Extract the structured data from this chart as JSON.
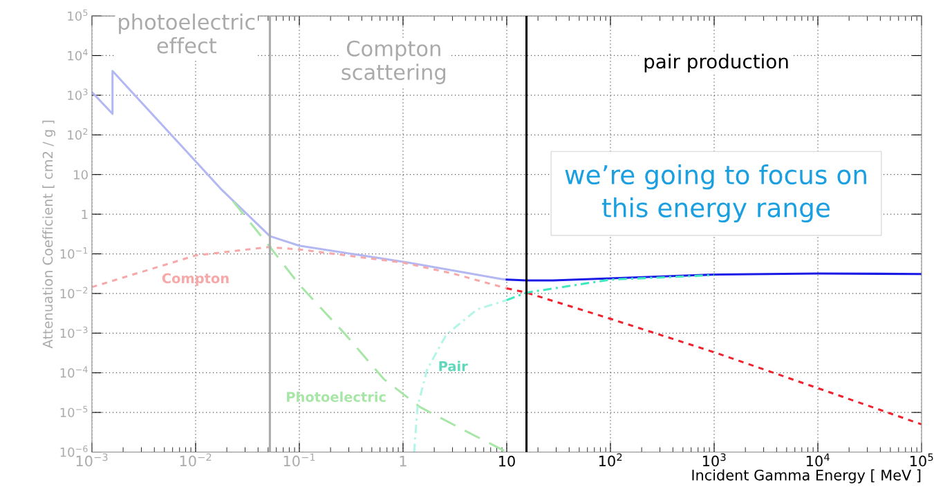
{
  "chart_data": {
    "type": "line",
    "xlabel": "Incident Gamma Energy [ MeV ]",
    "ylabel": "Attenuation Coefficient [ cm2 / g ]",
    "log": "xy",
    "xlim": [
      0.001,
      100000
    ],
    "ylim": [
      1e-06,
      100000
    ],
    "xticks": [
      {
        "value": 0.001,
        "label": "10$^{−3}$"
      },
      {
        "value": 0.01,
        "label": "10$^{−2}$"
      },
      {
        "value": 0.1,
        "label": "10$^{−1}$"
      },
      {
        "value": 1,
        "label": "1"
      },
      {
        "value": 10,
        "label": "10"
      },
      {
        "value": 100,
        "label": "10$^{2}$"
      },
      {
        "value": 1000,
        "label": "10$^{3}$"
      },
      {
        "value": 10000,
        "label": "10$^{4}$"
      },
      {
        "value": 100000,
        "label": "10$^{5}$"
      }
    ],
    "yticks": [
      {
        "value": 1e-06,
        "label": "10$^{−6}$"
      },
      {
        "value": 1e-05,
        "label": "10$^{−5}$"
      },
      {
        "value": 0.0001,
        "label": "10$^{−4}$"
      },
      {
        "value": 0.001,
        "label": "10$^{−3}$"
      },
      {
        "value": 0.01,
        "label": "10$^{−2}$"
      },
      {
        "value": 0.1,
        "label": "10$^{−1}$"
      },
      {
        "value": 1,
        "label": "1"
      },
      {
        "value": 10,
        "label": "10"
      },
      {
        "value": 100,
        "label": "10$^{2}$"
      },
      {
        "value": 1000,
        "label": "10$^{3}$"
      },
      {
        "value": 10000,
        "label": "10$^{4}$"
      },
      {
        "value": 100000,
        "label": "10$^{5}$"
      }
    ],
    "grid": true,
    "legend": false,
    "marker": "none",
    "series": [
      {
        "color": "#b3b8f2",
        "line_style": "solid",
        "x": [
          0.001,
          0.00158,
          0.00158,
          0.0179,
          0.052,
          0.1,
          1.13,
          9.1,
          10
        ],
        "values": [
          1200,
          340,
          4100,
          4.1,
          0.28,
          0.16,
          0.06,
          0.023,
          0.0224
        ]
      },
      {
        "color": "#1a1ae6",
        "line_style": "solid",
        "x": [
          10,
          15.5,
          28,
          100,
          1000,
          10000,
          100000
        ],
        "values": [
          0.0224,
          0.0214,
          0.0214,
          0.024,
          0.03,
          0.032,
          0.031
        ]
      },
      {
        "name": "Compton",
        "color": "#f7a8a8",
        "line_style": "dotted",
        "x": [
          0.001,
          0.01,
          0.05,
          0.1,
          1,
          3,
          10
        ],
        "values": [
          0.0145,
          0.091,
          0.148,
          0.129,
          0.06,
          0.032,
          0.0135
        ]
      },
      {
        "color": "#f0222e",
        "line_style": "dotted",
        "x": [
          10,
          15.5,
          100,
          1000,
          10000,
          100000
        ],
        "values": [
          0.0135,
          0.0105,
          0.0023,
          0.00033,
          4.1e-05,
          5e-06
        ]
      },
      {
        "name": "Photoelectric",
        "color": "#a8e6a8",
        "line_style": "dashed",
        "x": [
          0.023,
          0.052,
          0.1,
          0.28,
          0.65,
          1.45,
          3.7,
          10
        ],
        "values": [
          2.1,
          0.15,
          0.0166,
          0.00091,
          7e-05,
          1.38e-05,
          3.8e-06,
          1e-06
        ]
      },
      {
        "name": "Pair",
        "color": "#b3f5e6",
        "line_style": "dashdot",
        "x": [
          1.28,
          1.38,
          1.71,
          2.61,
          5.2,
          10
        ],
        "values": [
          1e-06,
          1.4e-05,
          0.000123,
          0.00091,
          0.004,
          0.0068
        ]
      },
      {
        "color": "#40e8c0",
        "line_style": "dashdot",
        "x": [
          10,
          15.5,
          100,
          1000
        ],
        "values": [
          0.0068,
          0.0105,
          0.0224,
          0.029
        ]
      }
    ],
    "ref_lines": [
      {
        "axis": "x",
        "value": 0.052,
        "color": "#aaaaaa"
      },
      {
        "axis": "x",
        "value": 15.5,
        "color": "#000000"
      }
    ],
    "annotations": [
      "photoelectric\neffect",
      "Compton\nscattering",
      "pair production",
      "we’re going to focus on\nthis energy range"
    ]
  }
}
